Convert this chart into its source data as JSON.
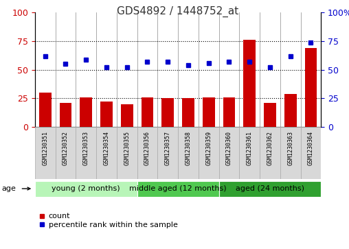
{
  "title": "GDS4892 / 1448752_at",
  "samples": [
    "GSM1230351",
    "GSM1230352",
    "GSM1230353",
    "GSM1230354",
    "GSM1230355",
    "GSM1230356",
    "GSM1230357",
    "GSM1230358",
    "GSM1230359",
    "GSM1230360",
    "GSM1230361",
    "GSM1230362",
    "GSM1230363",
    "GSM1230364"
  ],
  "counts": [
    30,
    21,
    26,
    22,
    20,
    26,
    25,
    25,
    26,
    26,
    76,
    21,
    29,
    69
  ],
  "percentiles": [
    62,
    55,
    59,
    52,
    52,
    57,
    57,
    54,
    56,
    57,
    57,
    52,
    62,
    74
  ],
  "groups": [
    {
      "label": "young (2 months)",
      "start": 0,
      "end": 5
    },
    {
      "label": "middle aged (12 months)",
      "start": 5,
      "end": 9
    },
    {
      "label": "aged (24 months)",
      "start": 9,
      "end": 14
    }
  ],
  "group_colors": [
    "#b8f5b8",
    "#50c850",
    "#30a030"
  ],
  "bar_color": "#CC0000",
  "dot_color": "#0000CC",
  "left_yticks": [
    0,
    25,
    50,
    75,
    100
  ],
  "right_yticks": [
    0,
    25,
    50,
    75,
    100
  ],
  "right_yticklabels": [
    "0",
    "25",
    "50",
    "75",
    "100%"
  ],
  "hline_values": [
    25,
    50,
    75
  ],
  "bg_color": "#ffffff",
  "title_fontsize": 11,
  "axis_fontsize": 9,
  "sample_fontsize": 6,
  "group_fontsize": 8,
  "legend_fontsize": 8
}
